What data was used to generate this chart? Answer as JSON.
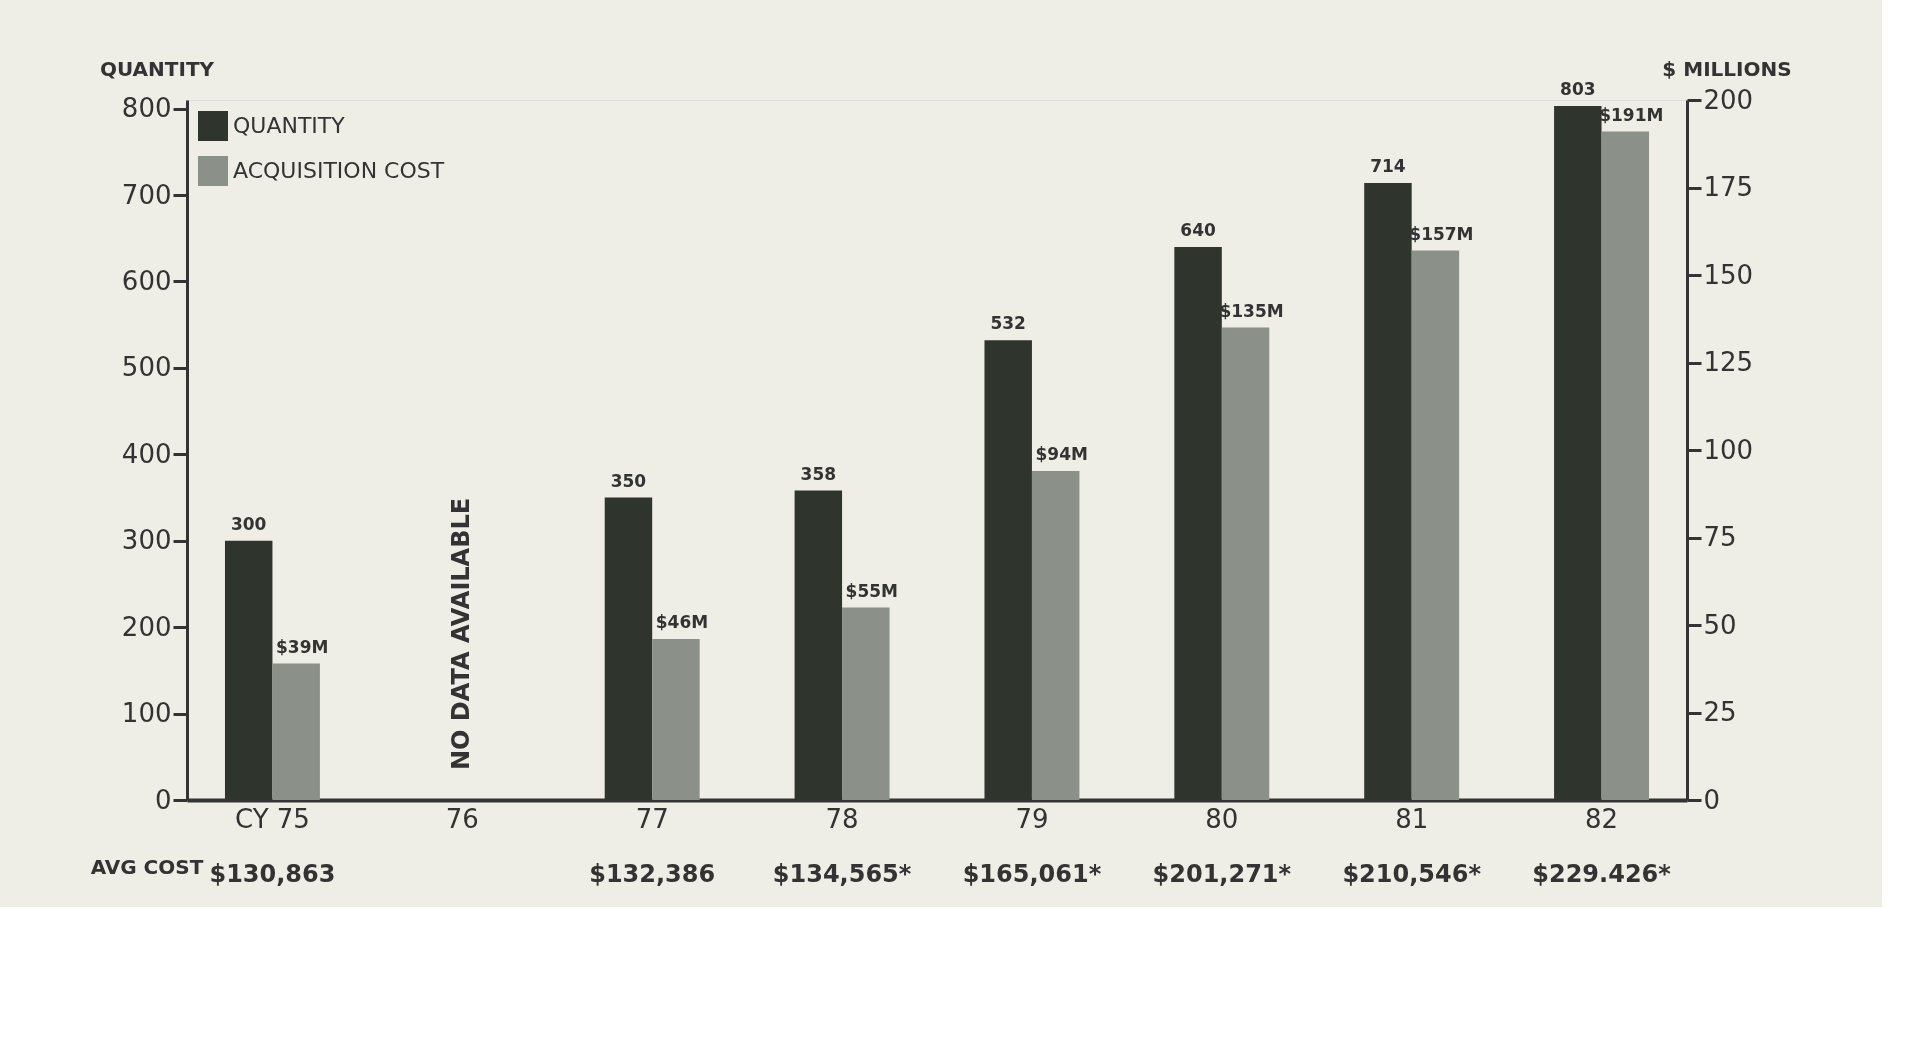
{
  "chart_data": {
    "type": "bar",
    "categories": [
      "CY 75",
      "76",
      "77",
      "78",
      "79",
      "80",
      "81",
      "82"
    ],
    "ylabel": "QUANTITY",
    "y2label": "$ MILLIONS",
    "series": [
      {
        "name": "QUANTITY",
        "color": "#2f352d",
        "values": [
          300,
          null,
          350,
          358,
          532,
          640,
          714,
          803
        ],
        "value_labels": [
          "300",
          null,
          "350",
          "358",
          "532",
          "640",
          "714",
          "803"
        ]
      },
      {
        "name": "ACQUISITION COST",
        "color": "#8b9088",
        "axis": "y2",
        "values": [
          39,
          null,
          46,
          55,
          94,
          135,
          157,
          191
        ],
        "value_labels": [
          "$39M",
          null,
          "$46M",
          "$55M",
          "$94M",
          "$135M",
          "$157M",
          "$191M"
        ]
      }
    ],
    "ylim": [
      0,
      810
    ],
    "yticks": [
      0,
      100,
      200,
      300,
      400,
      500,
      600,
      700,
      800
    ],
    "y2lim": [
      0,
      200
    ],
    "y2ticks": [
      0,
      25,
      50,
      75,
      100,
      125,
      150,
      175,
      200
    ],
    "grid": false,
    "legend": "top left",
    "annotations": [
      "AVG COST",
      "NO DATA AVAILABLE",
      "$130,863",
      "$132,386",
      "$134,565*",
      "$165,061*",
      "$201,271*",
      "$210,546*",
      "$229.426*"
    ]
  }
}
